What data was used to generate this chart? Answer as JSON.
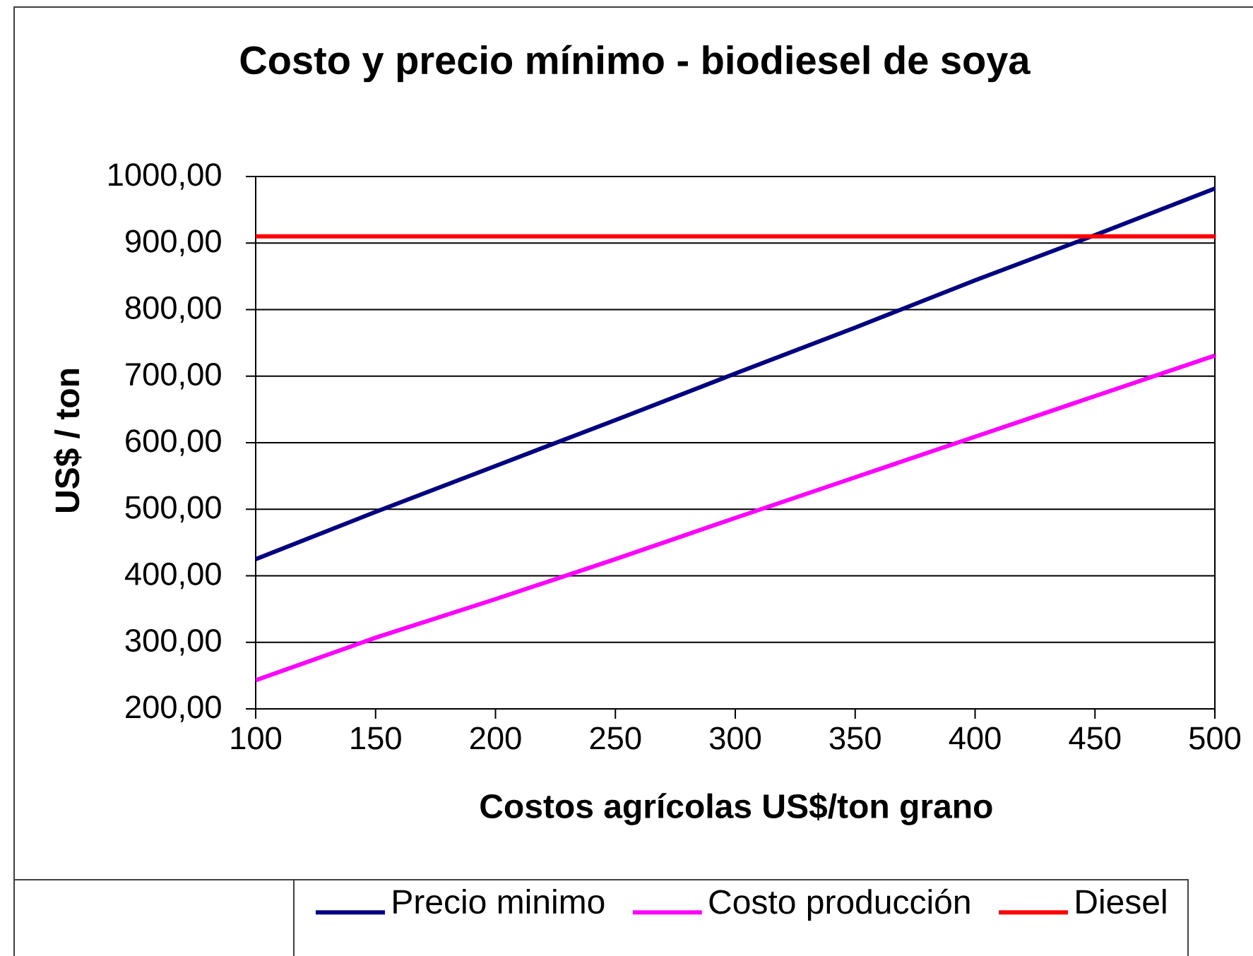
{
  "chart_data": {
    "type": "line",
    "title": "Costo y precio mínimo - biodiesel de soya",
    "xlabel": "Costos agrícolas US$/ton grano",
    "ylabel": "US$ / ton",
    "x": [
      100,
      150,
      200,
      250,
      300,
      350,
      400,
      450,
      500
    ],
    "series": [
      {
        "name": "Precio minimo",
        "color": "#000080",
        "values": [
          425,
          496,
          565,
          634,
          704,
          773,
          844,
          912,
          982
        ]
      },
      {
        "name": "Costo producción",
        "color": "#ff00ff",
        "values": [
          243,
          307,
          365,
          425,
          487,
          548,
          609,
          670,
          731
        ]
      },
      {
        "name": "Diesel",
        "color": "#ff0000",
        "values": [
          910,
          910,
          910,
          910,
          910,
          910,
          910,
          910,
          910
        ]
      }
    ],
    "xlim": [
      100,
      500
    ],
    "xticks": [
      100,
      150,
      200,
      250,
      300,
      350,
      400,
      450,
      500
    ],
    "ylim": [
      200,
      1000
    ],
    "yticks": [
      {
        "value": 200,
        "label": "200,00"
      },
      {
        "value": 300,
        "label": "300,00"
      },
      {
        "value": 400,
        "label": "400,00"
      },
      {
        "value": 500,
        "label": "500,00"
      },
      {
        "value": 600,
        "label": "600,00"
      },
      {
        "value": 700,
        "label": "700,00"
      },
      {
        "value": 800,
        "label": "800,00"
      },
      {
        "value": 900,
        "label": "900,00"
      },
      {
        "value": 1000,
        "label": "1000,00"
      }
    ],
    "grid": "y",
    "legend": "bottom",
    "marker": "none",
    "line_style": "solid"
  }
}
